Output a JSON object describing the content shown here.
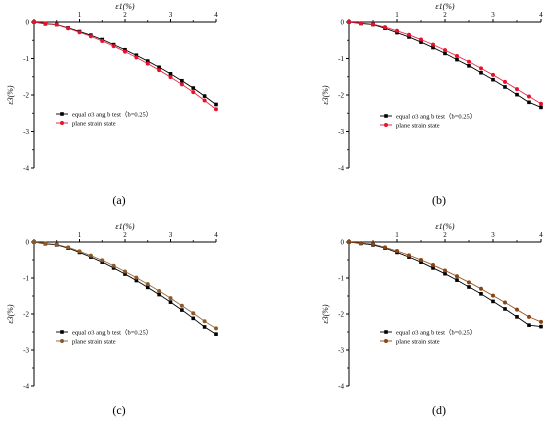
{
  "chart_data": [
    {
      "type": "line",
      "panel_label": "(a)",
      "xlabel": "ε1(%)",
      "ylabel": "ε3(%)",
      "xlim": [
        0,
        4
      ],
      "ylim": [
        -4,
        0
      ],
      "x_ticks": [
        "0",
        "1",
        "2",
        "3",
        "4"
      ],
      "y_ticks": [
        "0",
        "-1",
        "-2",
        "-3",
        "-4"
      ],
      "grid": false,
      "legend_placement": "center-left",
      "series": [
        {
          "name": "equal σ3 ang b test（b=0.25）",
          "color": "#000000",
          "marker": "square",
          "x": [
            0,
            0.25,
            0.5,
            0.75,
            1.0,
            1.25,
            1.5,
            1.75,
            2.0,
            2.25,
            2.5,
            2.75,
            3.0,
            3.25,
            3.5,
            3.75,
            4.0
          ],
          "y": [
            0,
            -0.05,
            -0.07,
            -0.16,
            -0.26,
            -0.36,
            -0.48,
            -0.62,
            -0.76,
            -0.91,
            -1.07,
            -1.24,
            -1.42,
            -1.61,
            -1.81,
            -2.03,
            -2.26
          ]
        },
        {
          "name": "plane strain state",
          "color": "#e8112d",
          "marker": "circle",
          "x": [
            0,
            0.25,
            0.5,
            0.75,
            1.0,
            1.25,
            1.5,
            1.75,
            2.0,
            2.25,
            2.5,
            2.75,
            3.0,
            3.25,
            3.5,
            3.75,
            4.0
          ],
          "y": [
            0,
            -0.04,
            -0.07,
            -0.17,
            -0.28,
            -0.39,
            -0.52,
            -0.66,
            -0.81,
            -0.97,
            -1.14,
            -1.32,
            -1.51,
            -1.71,
            -1.92,
            -2.15,
            -2.39
          ]
        }
      ]
    },
    {
      "type": "line",
      "panel_label": "(b)",
      "xlabel": "ε1(%)",
      "ylabel": "ε3(%)",
      "xlim": [
        0,
        4
      ],
      "ylim": [
        -4,
        0
      ],
      "x_ticks": [
        "0",
        "1",
        "2",
        "3",
        "4"
      ],
      "y_ticks": [
        "0",
        "-1",
        "-2",
        "-3",
        "-4"
      ],
      "grid": false,
      "legend_placement": "center-right",
      "series": [
        {
          "name": "equal σ3 ang b test（b=0.25）",
          "color": "#000000",
          "marker": "square",
          "x": [
            0,
            0.25,
            0.5,
            0.75,
            1.0,
            1.25,
            1.5,
            1.75,
            2.0,
            2.25,
            2.5,
            2.75,
            3.0,
            3.25,
            3.5,
            3.75,
            4.0
          ],
          "y": [
            0,
            -0.04,
            -0.07,
            -0.17,
            -0.29,
            -0.41,
            -0.55,
            -0.7,
            -0.86,
            -1.03,
            -1.2,
            -1.39,
            -1.58,
            -1.78,
            -1.99,
            -2.2,
            -2.34
          ]
        },
        {
          "name": "plane strain state",
          "color": "#e8112d",
          "marker": "circle",
          "x": [
            0,
            0.25,
            0.5,
            0.75,
            1.0,
            1.25,
            1.5,
            1.75,
            2.0,
            2.25,
            2.5,
            2.75,
            3.0,
            3.25,
            3.5,
            3.75,
            4.0
          ],
          "y": [
            0,
            -0.03,
            -0.06,
            -0.14,
            -0.24,
            -0.35,
            -0.48,
            -0.62,
            -0.77,
            -0.93,
            -1.09,
            -1.27,
            -1.45,
            -1.64,
            -1.84,
            -2.04,
            -2.24
          ]
        }
      ]
    },
    {
      "type": "line",
      "panel_label": "(c)",
      "xlabel": "ε1(%)",
      "ylabel": "ε3(%)",
      "xlim": [
        0,
        4
      ],
      "ylim": [
        -4,
        0
      ],
      "x_ticks": [
        "0",
        "1",
        "2",
        "3",
        "4"
      ],
      "y_ticks": [
        "0",
        "-1",
        "-2",
        "-3",
        "-4"
      ],
      "grid": false,
      "legend_placement": "center-left",
      "series": [
        {
          "name": "equal σ3 ang b test（b=0.25）",
          "color": "#000000",
          "marker": "square",
          "x": [
            0,
            0.25,
            0.5,
            0.75,
            1.0,
            1.25,
            1.5,
            1.75,
            2.0,
            2.25,
            2.5,
            2.75,
            3.0,
            3.25,
            3.5,
            3.75,
            4.0
          ],
          "y": [
            0,
            -0.05,
            -0.08,
            -0.17,
            -0.29,
            -0.42,
            -0.56,
            -0.72,
            -0.89,
            -1.07,
            -1.26,
            -1.46,
            -1.67,
            -1.89,
            -2.12,
            -2.36,
            -2.56
          ]
        },
        {
          "name": "plane strain state",
          "color": "#8b5a2b",
          "marker": "circle",
          "x": [
            0,
            0.25,
            0.5,
            0.75,
            1.0,
            1.25,
            1.5,
            1.75,
            2.0,
            2.25,
            2.5,
            2.75,
            3.0,
            3.25,
            3.5,
            3.75,
            4.0
          ],
          "y": [
            0,
            -0.04,
            -0.07,
            -0.15,
            -0.26,
            -0.38,
            -0.51,
            -0.66,
            -0.82,
            -0.99,
            -1.17,
            -1.36,
            -1.56,
            -1.77,
            -1.98,
            -2.2,
            -2.4
          ]
        }
      ]
    },
    {
      "type": "line",
      "panel_label": "(d)",
      "xlabel": "ε1(%)",
      "ylabel": "ε3(%)",
      "xlim": [
        0,
        4
      ],
      "ylim": [
        -4,
        0
      ],
      "x_ticks": [
        "0",
        "1",
        "2",
        "3",
        "4"
      ],
      "y_ticks": [
        "0",
        "-1",
        "-2",
        "-3",
        "-4"
      ],
      "grid": false,
      "legend_placement": "center-right",
      "series": [
        {
          "name": "equal σ3 ang b test（b=0.25）",
          "color": "#000000",
          "marker": "square",
          "x": [
            0,
            0.25,
            0.5,
            0.75,
            1.0,
            1.25,
            1.5,
            1.75,
            2.0,
            2.25,
            2.5,
            2.75,
            3.0,
            3.25,
            3.5,
            3.75,
            4.0
          ],
          "y": [
            0,
            -0.04,
            -0.08,
            -0.17,
            -0.29,
            -0.42,
            -0.56,
            -0.72,
            -0.88,
            -1.06,
            -1.25,
            -1.44,
            -1.65,
            -1.86,
            -2.08,
            -2.31,
            -2.35
          ]
        },
        {
          "name": "plane strain state",
          "color": "#8b4513",
          "marker": "circle",
          "x": [
            0,
            0.25,
            0.5,
            0.75,
            1.0,
            1.25,
            1.5,
            1.75,
            2.0,
            2.25,
            2.5,
            2.75,
            3.0,
            3.25,
            3.5,
            3.75,
            4.0
          ],
          "y": [
            0,
            -0.03,
            -0.06,
            -0.15,
            -0.25,
            -0.37,
            -0.5,
            -0.64,
            -0.79,
            -0.95,
            -1.12,
            -1.3,
            -1.49,
            -1.68,
            -1.88,
            -2.08,
            -2.22
          ]
        }
      ]
    }
  ]
}
